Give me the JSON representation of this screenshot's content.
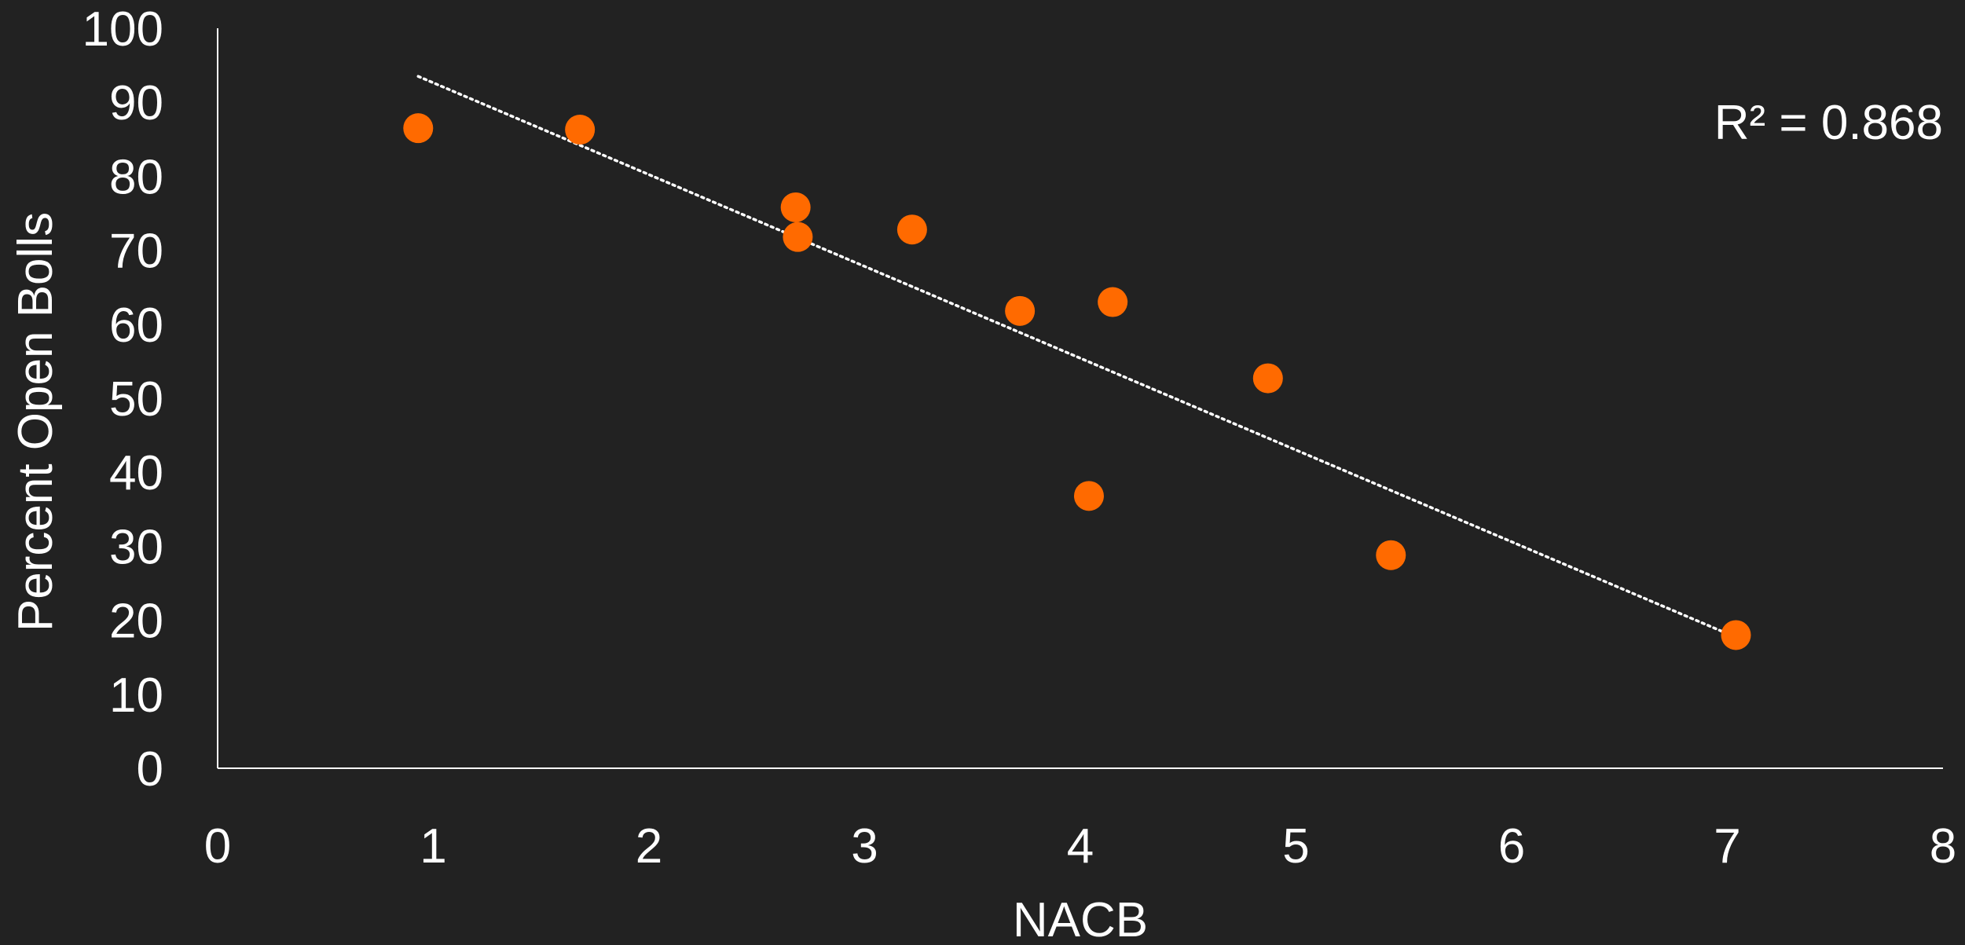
{
  "chart_data": {
    "type": "scatter",
    "title": "",
    "xlabel": "NACB",
    "ylabel": "Percent Open Bolls",
    "xlim": [
      0,
      8
    ],
    "ylim": [
      0,
      100
    ],
    "x_ticks": [
      "0",
      "1",
      "2",
      "3",
      "4",
      "5",
      "6",
      "7",
      "8"
    ],
    "y_ticks": [
      "0",
      "10",
      "20",
      "30",
      "40",
      "50",
      "60",
      "70",
      "80",
      "90",
      "100"
    ],
    "grid": false,
    "legend": "none",
    "marker_color": "#ff6a00",
    "trendline_color": "#ffffff",
    "axis_color": "#ffffff",
    "background_color": "#222222",
    "points": [
      {
        "x": 0.93,
        "y": 86.5
      },
      {
        "x": 1.68,
        "y": 86.3
      },
      {
        "x": 2.68,
        "y": 75.8
      },
      {
        "x": 2.69,
        "y": 71.8
      },
      {
        "x": 3.22,
        "y": 72.8
      },
      {
        "x": 3.72,
        "y": 61.8
      },
      {
        "x": 4.04,
        "y": 36.8
      },
      {
        "x": 4.15,
        "y": 63.0
      },
      {
        "x": 4.87,
        "y": 52.7
      },
      {
        "x": 5.44,
        "y": 28.8
      },
      {
        "x": 7.04,
        "y": 18.0
      }
    ],
    "trendline": {
      "type": "linear",
      "x_start": 0.93,
      "y_start": 93.5,
      "x_end": 7.04,
      "y_end": 17.7,
      "style": "dotted"
    },
    "annotation": "R² = 0.868"
  }
}
